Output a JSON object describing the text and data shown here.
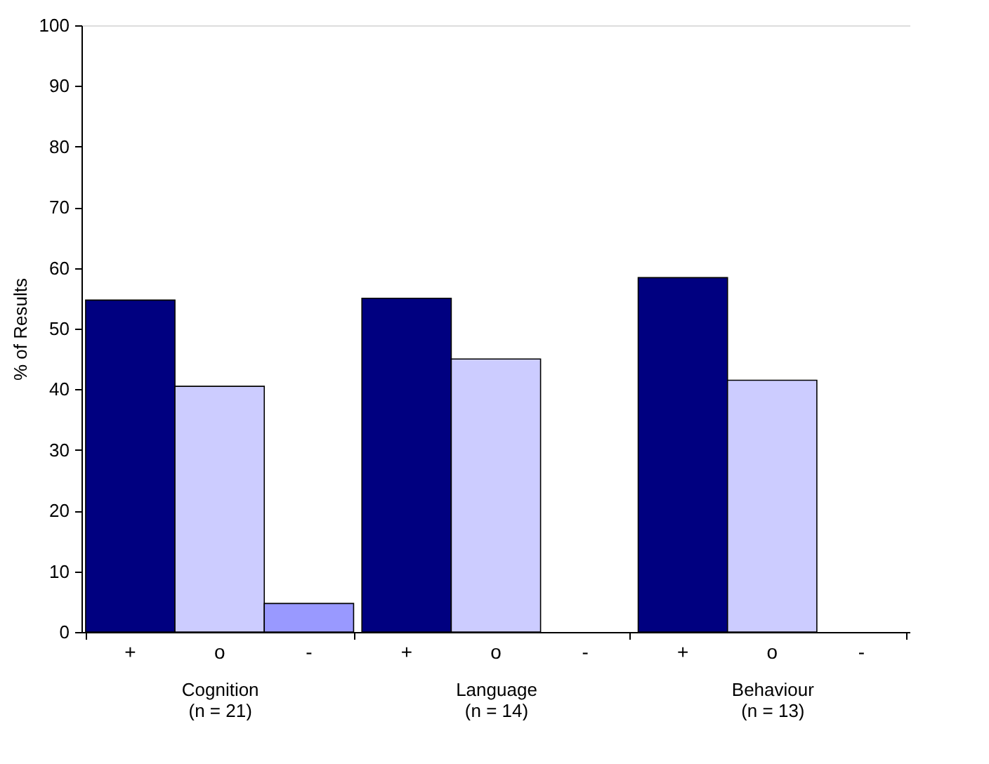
{
  "chart_data": {
    "type": "bar",
    "ylabel": "% of Results",
    "categories": [
      "Cognition\n(n = 21)",
      "Language\n(n = 14)",
      "Behaviour\n(n = 13)"
    ],
    "series": [
      {
        "name": "+",
        "color": "#000080",
        "values": [
          54.7,
          55.0,
          58.4
        ]
      },
      {
        "name": "o",
        "color": "#ccccff",
        "values": [
          40.5,
          45.0,
          41.5
        ]
      },
      {
        "name": "-",
        "color": "#9999ff",
        "values": [
          4.7,
          null,
          null
        ]
      }
    ],
    "ylim": [
      0,
      100
    ],
    "yticks": [
      0,
      10,
      20,
      30,
      40,
      50,
      60,
      70,
      80,
      90,
      100
    ],
    "grid": false,
    "legend": false
  }
}
